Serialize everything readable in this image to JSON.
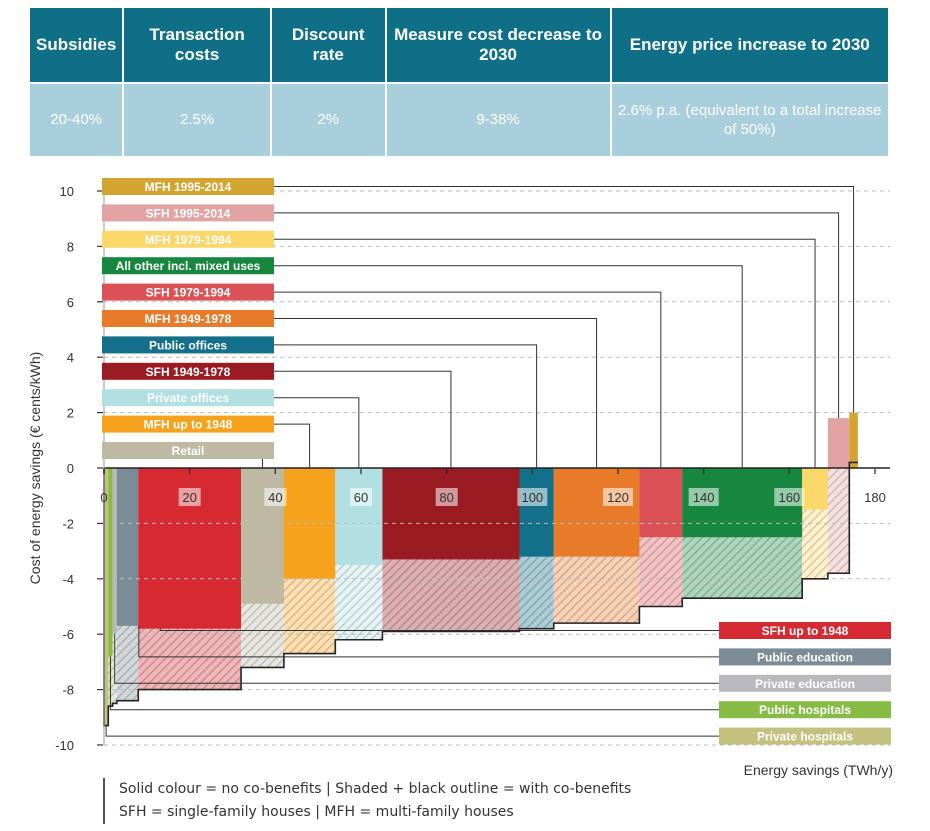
{
  "params": {
    "headers": [
      "Subsidies",
      "Transaction costs",
      "Discount rate",
      "Measure cost decrease to 2030",
      "Energy price increase to 2030"
    ],
    "values": [
      "20-40%",
      "2.5%",
      "2%",
      "9-38%",
      "2.6% p.a. (equivalent to a total increase of 50%)"
    ]
  },
  "notes": [
    "Solid colour = no co-benefits  |  Shaded + black outline = with co-benefits",
    "SFH = single-family houses  |  MFH = multi-family houses"
  ],
  "chart_data": {
    "type": "bar",
    "subtype": "marginal-abatement-cost-curve",
    "xlabel": "Energy savings (TWh/y)",
    "ylabel": "Cost of energy savings (€ cents/kWh)",
    "xlim": [
      0,
      180
    ],
    "ylim": [
      -10,
      10
    ],
    "xticks": [
      0,
      20,
      40,
      60,
      80,
      100,
      120,
      140,
      160,
      180
    ],
    "yticks": [
      10,
      8,
      6,
      4,
      2,
      0,
      -2,
      -4,
      -6,
      -8,
      -10
    ],
    "series": [
      {
        "name": "Private hospitals",
        "color": "#c4c17f",
        "x_start": 0,
        "x_end": 1,
        "cost": -9.3,
        "cost_cobenefits": -9.3
      },
      {
        "name": "Public hospitals",
        "color": "#86bc43",
        "x_start": 1,
        "x_end": 2,
        "cost": -6.8,
        "cost_cobenefits": -8.6
      },
      {
        "name": "Private education",
        "color": "#b9b9bd",
        "x_start": 2,
        "x_end": 3,
        "cost": -6.0,
        "cost_cobenefits": -8.5
      },
      {
        "name": "Public education",
        "color": "#7c8c96",
        "x_start": 3,
        "x_end": 8,
        "cost": -5.7,
        "cost_cobenefits": -8.4
      },
      {
        "name": "SFH up to 1948",
        "color": "#d52a31",
        "x_start": 8,
        "x_end": 32,
        "cost": -5.8,
        "cost_cobenefits": -8.0
      },
      {
        "name": "Retail",
        "color": "#bdb9a3",
        "x_start": 32,
        "x_end": 42,
        "cost": -4.9,
        "cost_cobenefits": -7.2
      },
      {
        "name": "MFH up to 1948",
        "color": "#f6a21d",
        "x_start": 42,
        "x_end": 54,
        "cost": -4.0,
        "cost_cobenefits": -6.7
      },
      {
        "name": "Private offices",
        "color": "#b2dfe1",
        "x_start": 54,
        "x_end": 65,
        "cost": -3.5,
        "cost_cobenefits": -6.2
      },
      {
        "name": "SFH 1949-1978",
        "color": "#9b1b23",
        "x_start": 65,
        "x_end": 97,
        "cost": -3.3,
        "cost_cobenefits": -5.9
      },
      {
        "name": "Public offices",
        "color": "#136f8a",
        "x_start": 97,
        "x_end": 105,
        "cost": -3.2,
        "cost_cobenefits": -5.8
      },
      {
        "name": "MFH 1949-1978",
        "color": "#e77b2a",
        "x_start": 105,
        "x_end": 125,
        "cost": -3.2,
        "cost_cobenefits": -5.6
      },
      {
        "name": "SFH 1979-1994",
        "color": "#dc5157",
        "x_start": 125,
        "x_end": 135,
        "cost": -2.5,
        "cost_cobenefits": -5.0
      },
      {
        "name": "All other incl. mixed uses",
        "color": "#17873f",
        "x_start": 135,
        "x_end": 163,
        "cost": -2.5,
        "cost_cobenefits": -4.7
      },
      {
        "name": "MFH 1979-1994",
        "color": "#fcd86a",
        "x_start": 163,
        "x_end": 169,
        "cost": -1.5,
        "cost_cobenefits": -4.0
      },
      {
        "name": "SFH 1995-2014",
        "color": "#e2a3a4",
        "x_start": 169,
        "x_end": 174,
        "cost": 1.8,
        "cost_cobenefits": -3.8
      },
      {
        "name": "MFH 1995-2014",
        "color": "#d4a431",
        "x_start": 174,
        "x_end": 176,
        "cost": 2.0,
        "cost_cobenefits": 0.2
      }
    ]
  }
}
